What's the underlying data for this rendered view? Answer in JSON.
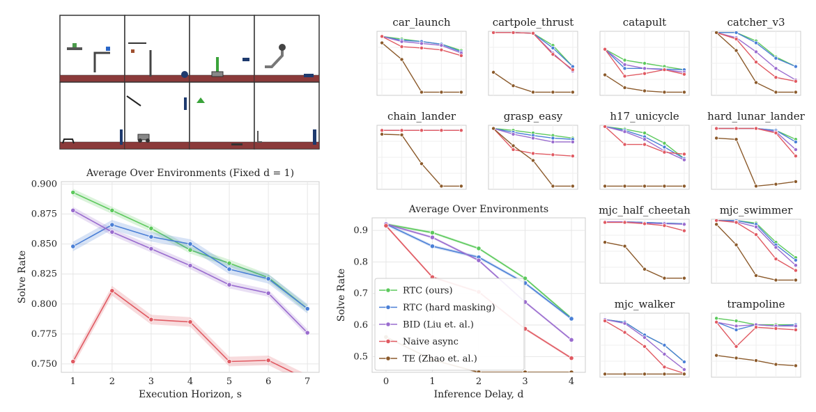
{
  "thumbnails": {
    "count": 8,
    "description_colors": {
      "floor": "#8b3a3a",
      "frame": "#333333"
    }
  },
  "series_styles": [
    {
      "key": "rtc",
      "color": "#5cc95c"
    },
    {
      "key": "rtc_hard",
      "color": "#4a7fd6"
    },
    {
      "key": "bid",
      "color": "#9a6ccf"
    },
    {
      "key": "naive",
      "color": "#e05a62"
    },
    {
      "key": "te",
      "color": "#8b5a2b"
    }
  ],
  "chart_data": [
    {
      "id": "fixed_d",
      "type": "line",
      "title": "Average Over Environments (Fixed d = 1)",
      "xlabel": "Execution Horizon, s",
      "ylabel": "Solve Rate",
      "x": [
        1,
        2,
        3,
        4,
        5,
        6,
        7
      ],
      "xlim": [
        0.7,
        7.3
      ],
      "ylim": [
        0.743,
        0.902
      ],
      "yticks": [
        0.75,
        0.775,
        0.8,
        0.825,
        0.85,
        0.875,
        0.9
      ],
      "ytick_labels": [
        "0.750",
        "0.775",
        "0.800",
        "0.825",
        "0.850",
        "0.875",
        "0.900"
      ],
      "grid": true,
      "series": [
        {
          "key": "rtc",
          "values": [
            0.893,
            0.878,
            0.863,
            0.845,
            0.834,
            0.822,
            0.796
          ],
          "band": 0.003
        },
        {
          "key": "rtc_hard",
          "values": [
            0.848,
            0.866,
            0.856,
            0.85,
            0.829,
            0.821,
            0.796
          ],
          "band": 0.004
        },
        {
          "key": "bid",
          "values": [
            0.878,
            0.86,
            0.846,
            0.832,
            0.816,
            0.809,
            0.776
          ],
          "band": 0.003
        },
        {
          "key": "naive",
          "values": [
            0.752,
            0.811,
            0.787,
            0.785,
            0.752,
            0.753,
            0.737
          ],
          "band": 0.004
        }
      ]
    },
    {
      "id": "avg",
      "type": "line",
      "title": "Average Over Environments",
      "xlabel": "Inference Delay, d",
      "ylabel": "Solve Rate",
      "x": [
        0,
        1,
        2,
        3,
        4
      ],
      "xlim": [
        -0.3,
        4.3
      ],
      "ylim": [
        0.45,
        0.94
      ],
      "yticks": [
        0.5,
        0.6,
        0.7,
        0.8,
        0.9
      ],
      "ytick_labels": [
        "0.5",
        "0.6",
        "0.7",
        "0.8",
        "0.9"
      ],
      "grid": true,
      "legend": {
        "placement": "lower-left",
        "entries": [
          {
            "key": "rtc",
            "label": "RTC (ours)"
          },
          {
            "key": "rtc_hard",
            "label": "RTC (hard masking)"
          },
          {
            "key": "bid",
            "label": "BID (Liu et. al.)"
          },
          {
            "key": "naive",
            "label": "Naive async"
          },
          {
            "key": "te",
            "label": "TE (Zhao et. al.)"
          }
        ]
      },
      "series": [
        {
          "key": "rtc",
          "values": [
            0.92,
            0.893,
            0.843,
            0.748,
            0.622
          ],
          "band": 0.004
        },
        {
          "key": "rtc_hard",
          "values": [
            0.92,
            0.85,
            0.815,
            0.733,
            0.62
          ],
          "band": 0.005
        },
        {
          "key": "bid",
          "values": [
            0.92,
            0.878,
            0.805,
            0.673,
            0.553
          ],
          "band": 0.004
        },
        {
          "key": "naive",
          "values": [
            0.915,
            0.752,
            0.705,
            0.588,
            0.495
          ],
          "band": 0.004
        },
        {
          "key": "te",
          "values": [
            0.562,
            0.49,
            0.45,
            0.45,
            0.45
          ],
          "band": 0.003
        }
      ]
    },
    {
      "id": "car_launch",
      "type": "line",
      "title": "car_launch",
      "x": [
        0,
        1,
        2,
        3,
        4
      ],
      "ylim": [
        0,
        1
      ],
      "series": [
        {
          "key": "rtc",
          "values": [
            0.92,
            0.88,
            0.84,
            0.8,
            0.7
          ]
        },
        {
          "key": "rtc_hard",
          "values": [
            0.92,
            0.86,
            0.84,
            0.8,
            0.68
          ]
        },
        {
          "key": "bid",
          "values": [
            0.92,
            0.84,
            0.81,
            0.78,
            0.66
          ]
        },
        {
          "key": "naive",
          "values": [
            0.92,
            0.76,
            0.74,
            0.71,
            0.62
          ]
        },
        {
          "key": "te",
          "values": [
            0.82,
            0.56,
            0.05,
            0.05,
            0.05
          ]
        }
      ]
    },
    {
      "id": "cartpole_thrust",
      "type": "line",
      "title": "cartpole_thrust",
      "x": [
        0,
        1,
        2,
        3,
        4
      ],
      "ylim": [
        0,
        1
      ],
      "series": [
        {
          "key": "rtc",
          "values": [
            0.98,
            0.98,
            0.97,
            0.78,
            0.45
          ]
        },
        {
          "key": "rtc_hard",
          "values": [
            0.98,
            0.98,
            0.97,
            0.74,
            0.45
          ]
        },
        {
          "key": "bid",
          "values": [
            0.98,
            0.98,
            0.97,
            0.66,
            0.38
          ]
        },
        {
          "key": "naive",
          "values": [
            0.98,
            0.98,
            0.97,
            0.64,
            0.4
          ]
        },
        {
          "key": "te",
          "values": [
            0.36,
            0.15,
            0.05,
            0.05,
            0.05
          ]
        }
      ]
    },
    {
      "id": "catapult",
      "type": "line",
      "title": "catapult",
      "x": [
        0,
        1,
        2,
        3,
        4
      ],
      "ylim": [
        0,
        1
      ],
      "series": [
        {
          "key": "rtc",
          "values": [
            0.72,
            0.55,
            0.5,
            0.45,
            0.4
          ]
        },
        {
          "key": "rtc_hard",
          "values": [
            0.72,
            0.42,
            0.42,
            0.41,
            0.4
          ]
        },
        {
          "key": "bid",
          "values": [
            0.72,
            0.48,
            0.42,
            0.4,
            0.36
          ]
        },
        {
          "key": "naive",
          "values": [
            0.72,
            0.3,
            0.34,
            0.4,
            0.33
          ]
        },
        {
          "key": "te",
          "values": [
            0.32,
            0.12,
            0.07,
            0.05,
            0.05
          ]
        }
      ]
    },
    {
      "id": "catcher_v3",
      "type": "line",
      "title": "catcher_v3",
      "x": [
        0,
        1,
        2,
        3,
        4
      ],
      "ylim": [
        0,
        1
      ],
      "series": [
        {
          "key": "rtc",
          "values": [
            0.98,
            0.98,
            0.85,
            0.6,
            0.45
          ]
        },
        {
          "key": "rtc_hard",
          "values": [
            0.98,
            0.98,
            0.82,
            0.58,
            0.45
          ]
        },
        {
          "key": "bid",
          "values": [
            0.98,
            0.9,
            0.68,
            0.42,
            0.24
          ]
        },
        {
          "key": "naive",
          "values": [
            0.98,
            0.88,
            0.52,
            0.28,
            0.22
          ]
        },
        {
          "key": "te",
          "values": [
            0.98,
            0.7,
            0.2,
            0.05,
            0.05
          ]
        }
      ]
    },
    {
      "id": "chain_lander",
      "type": "line",
      "title": "chain_lander",
      "x": [
        0,
        1,
        2,
        3,
        4
      ],
      "ylim": [
        0,
        1
      ],
      "series": [
        {
          "key": "rtc",
          "values": [
            0.92,
            0.92,
            0.92,
            0.92,
            0.92
          ]
        },
        {
          "key": "rtc_hard",
          "values": [
            0.92,
            0.92,
            0.92,
            0.92,
            0.92
          ]
        },
        {
          "key": "bid",
          "values": [
            0.92,
            0.92,
            0.92,
            0.92,
            0.92
          ]
        },
        {
          "key": "naive",
          "values": [
            0.92,
            0.92,
            0.92,
            0.92,
            0.92
          ]
        },
        {
          "key": "te",
          "values": [
            0.86,
            0.85,
            0.4,
            0.05,
            0.05
          ]
        }
      ]
    },
    {
      "id": "grasp_easy",
      "type": "line",
      "title": "grasp_easy",
      "x": [
        0,
        1,
        2,
        3,
        4
      ],
      "ylim": [
        0,
        1
      ],
      "series": [
        {
          "key": "rtc",
          "values": [
            0.95,
            0.92,
            0.88,
            0.84,
            0.8
          ]
        },
        {
          "key": "rtc_hard",
          "values": [
            0.95,
            0.89,
            0.84,
            0.8,
            0.78
          ]
        },
        {
          "key": "bid",
          "values": [
            0.95,
            0.86,
            0.8,
            0.74,
            0.74
          ]
        },
        {
          "key": "naive",
          "values": [
            0.95,
            0.62,
            0.56,
            0.54,
            0.52
          ]
        },
        {
          "key": "te",
          "values": [
            0.95,
            0.68,
            0.45,
            0.05,
            0.05
          ]
        }
      ]
    },
    {
      "id": "h17_unicycle",
      "type": "line",
      "title": "h17_unicycle",
      "x": [
        0,
        1,
        2,
        3,
        4
      ],
      "ylim": [
        0,
        1
      ],
      "series": [
        {
          "key": "rtc",
          "values": [
            0.98,
            0.94,
            0.88,
            0.72,
            0.48
          ]
        },
        {
          "key": "rtc_hard",
          "values": [
            0.98,
            0.92,
            0.82,
            0.66,
            0.48
          ]
        },
        {
          "key": "bid",
          "values": [
            0.98,
            0.9,
            0.78,
            0.6,
            0.46
          ]
        },
        {
          "key": "naive",
          "values": [
            0.98,
            0.7,
            0.7,
            0.58,
            0.55
          ]
        },
        {
          "key": "te",
          "values": [
            0.05,
            0.05,
            0.05,
            0.05,
            0.05
          ]
        }
      ]
    },
    {
      "id": "hard_lunar_lander",
      "type": "line",
      "title": "hard_lunar_lander",
      "x": [
        0,
        1,
        2,
        3,
        4
      ],
      "ylim": [
        0,
        1
      ],
      "series": [
        {
          "key": "rtc",
          "values": [
            0.95,
            0.95,
            0.95,
            0.92,
            0.78
          ]
        },
        {
          "key": "rtc_hard",
          "values": [
            0.95,
            0.95,
            0.95,
            0.92,
            0.74
          ]
        },
        {
          "key": "bid",
          "values": [
            0.95,
            0.95,
            0.95,
            0.9,
            0.62
          ]
        },
        {
          "key": "naive",
          "values": [
            0.95,
            0.95,
            0.95,
            0.88,
            0.52
          ]
        },
        {
          "key": "te",
          "values": [
            0.8,
            0.78,
            0.05,
            0.08,
            0.12
          ]
        }
      ]
    },
    {
      "id": "mjc_half_cheetah",
      "type": "line",
      "title": "mjc_half_cheetah",
      "x": [
        0,
        1,
        2,
        3,
        4
      ],
      "ylim": [
        0,
        1
      ],
      "series": [
        {
          "key": "rtc",
          "values": [
            0.96,
            0.96,
            0.95,
            0.94,
            0.93
          ]
        },
        {
          "key": "rtc_hard",
          "values": [
            0.96,
            0.96,
            0.95,
            0.94,
            0.93
          ]
        },
        {
          "key": "bid",
          "values": [
            0.96,
            0.96,
            0.94,
            0.93,
            0.92
          ]
        },
        {
          "key": "naive",
          "values": [
            0.95,
            0.95,
            0.93,
            0.9,
            0.82
          ]
        },
        {
          "key": "te",
          "values": [
            0.64,
            0.58,
            0.22,
            0.08,
            0.08
          ]
        }
      ]
    },
    {
      "id": "mjc_swimmer",
      "type": "line",
      "title": "mjc_swimmer",
      "x": [
        0,
        1,
        2,
        3,
        4
      ],
      "ylim": [
        0,
        1
      ],
      "series": [
        {
          "key": "rtc",
          "values": [
            0.98,
            0.98,
            0.94,
            0.64,
            0.4
          ]
        },
        {
          "key": "rtc_hard",
          "values": [
            0.98,
            0.98,
            0.92,
            0.6,
            0.36
          ]
        },
        {
          "key": "bid",
          "values": [
            0.98,
            0.96,
            0.88,
            0.56,
            0.28
          ]
        },
        {
          "key": "naive",
          "values": [
            0.98,
            0.95,
            0.76,
            0.38,
            0.2
          ]
        },
        {
          "key": "te",
          "values": [
            0.92,
            0.6,
            0.12,
            0.05,
            0.05
          ]
        }
      ]
    },
    {
      "id": "mjc_walker",
      "type": "line",
      "title": "mjc_walker",
      "x": [
        0,
        1,
        2,
        3,
        4
      ],
      "ylim": [
        0,
        1
      ],
      "series": [
        {
          "key": "rtc",
          "values": [
            0.9,
            0.86,
            0.66,
            0.5,
            0.24
          ]
        },
        {
          "key": "rtc_hard",
          "values": [
            0.9,
            0.86,
            0.66,
            0.5,
            0.24
          ]
        },
        {
          "key": "bid",
          "values": [
            0.9,
            0.84,
            0.62,
            0.36,
            0.12
          ]
        },
        {
          "key": "naive",
          "values": [
            0.88,
            0.7,
            0.48,
            0.16,
            0.06
          ]
        },
        {
          "key": "te",
          "values": [
            0.05,
            0.05,
            0.05,
            0.05,
            0.05
          ]
        }
      ]
    },
    {
      "id": "trampoline",
      "type": "line",
      "title": "trampoline",
      "x": [
        0,
        1,
        2,
        3,
        4
      ],
      "ylim": [
        0,
        1
      ],
      "series": [
        {
          "key": "rtc",
          "values": [
            0.92,
            0.88,
            0.82,
            0.82,
            0.82
          ]
        },
        {
          "key": "rtc_hard",
          "values": [
            0.86,
            0.74,
            0.82,
            0.8,
            0.82
          ]
        },
        {
          "key": "bid",
          "values": [
            0.86,
            0.8,
            0.82,
            0.8,
            0.8
          ]
        },
        {
          "key": "naive",
          "values": [
            0.86,
            0.48,
            0.78,
            0.76,
            0.74
          ]
        },
        {
          "key": "te",
          "values": [
            0.34,
            0.3,
            0.26,
            0.2,
            0.18
          ]
        }
      ]
    }
  ]
}
